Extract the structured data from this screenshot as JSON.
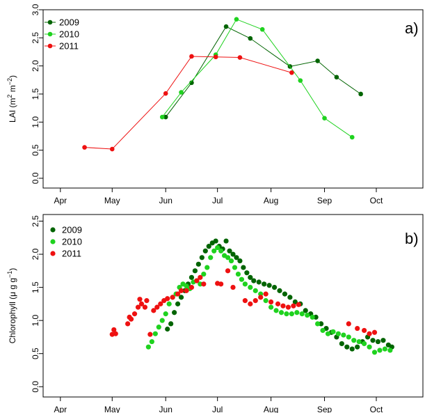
{
  "chart_data": [
    {
      "type": "line",
      "panel_label": "a)",
      "ylabel_main": "LAI (m",
      "ylabel_sup1": "2",
      "ylabel_mid": " m",
      "ylabel_sup2": "−2",
      "ylabel_end": ")",
      "xlim": [
        "2009-03-22",
        "2009-10-28"
      ],
      "ylim": [
        -0.05,
        3.0
      ],
      "yticks": [
        "0.0",
        "0.5",
        "1.0",
        "1.5",
        "2.0",
        "2.5",
        "3.0"
      ],
      "xticks": [
        {
          "date": "2009-04-01",
          "label": "Apr"
        },
        {
          "date": "2009-05-01",
          "label": "May"
        },
        {
          "date": "2009-06-01",
          "label": "Jun"
        },
        {
          "date": "2009-07-01",
          "label": "Jul"
        },
        {
          "date": "2009-08-01",
          "label": "Aug"
        },
        {
          "date": "2009-09-01",
          "label": "Sep"
        },
        {
          "date": "2009-10-01",
          "label": "Oct"
        }
      ],
      "legend_position": "top-left",
      "series": [
        {
          "name": "2009",
          "color": "#006400",
          "points": [
            {
              "x": "2009-06-01",
              "y": 1.09
            },
            {
              "x": "2009-06-16",
              "y": 1.7
            },
            {
              "x": "2009-07-06",
              "y": 2.7
            },
            {
              "x": "2009-07-20",
              "y": 2.49
            },
            {
              "x": "2009-08-12",
              "y": 1.99
            },
            {
              "x": "2009-08-28",
              "y": 2.09
            },
            {
              "x": "2009-09-08",
              "y": 1.8
            },
            {
              "x": "2009-09-22",
              "y": 1.5
            }
          ]
        },
        {
          "name": "2010",
          "color": "#1FD21F",
          "points": [
            {
              "x": "2009-05-30",
              "y": 1.09
            },
            {
              "x": "2009-06-10",
              "y": 1.53
            },
            {
              "x": "2009-06-30",
              "y": 2.2
            },
            {
              "x": "2009-07-12",
              "y": 2.83
            },
            {
              "x": "2009-07-27",
              "y": 2.65
            },
            {
              "x": "2009-08-18",
              "y": 1.74
            },
            {
              "x": "2009-09-01",
              "y": 1.07
            },
            {
              "x": "2009-09-17",
              "y": 0.73
            }
          ]
        },
        {
          "name": "2011",
          "color": "#EE1111",
          "points": [
            {
              "x": "2009-04-15",
              "y": 0.55
            },
            {
              "x": "2009-05-01",
              "y": 0.52
            },
            {
              "x": "2009-06-01",
              "y": 1.51
            },
            {
              "x": "2009-06-16",
              "y": 2.17
            },
            {
              "x": "2009-06-30",
              "y": 2.16
            },
            {
              "x": "2009-07-14",
              "y": 2.15
            },
            {
              "x": "2009-08-13",
              "y": 1.88
            }
          ]
        }
      ]
    },
    {
      "type": "scatter",
      "panel_label": "b)",
      "ylabel_main": "Chlorophyll (μ g g",
      "ylabel_sup1": "−1",
      "ylabel_end": ")",
      "xlim": [
        "2009-03-22",
        "2009-10-28"
      ],
      "ylim": [
        -0.05,
        2.6
      ],
      "yticks": [
        "0.0",
        "0.5",
        "1.0",
        "1.5",
        "2.0",
        "2.5"
      ],
      "xticks": [
        {
          "date": "2009-04-01",
          "label": "Apr"
        },
        {
          "date": "2009-05-01",
          "label": "May"
        },
        {
          "date": "2009-06-01",
          "label": "Jun"
        },
        {
          "date": "2009-07-01",
          "label": "Jul"
        },
        {
          "date": "2009-08-01",
          "label": "Aug"
        },
        {
          "date": "2009-09-01",
          "label": "Sep"
        },
        {
          "date": "2009-10-01",
          "label": "Oct"
        }
      ],
      "legend_position": "top-left",
      "series": [
        {
          "name": "2009",
          "color": "#006400",
          "points": [
            {
              "x": "2009-06-02",
              "y": 0.87
            },
            {
              "x": "2009-06-04",
              "y": 0.95
            },
            {
              "x": "2009-06-06",
              "y": 1.12
            },
            {
              "x": "2009-06-08",
              "y": 1.25
            },
            {
              "x": "2009-06-10",
              "y": 1.35
            },
            {
              "x": "2009-06-12",
              "y": 1.45
            },
            {
              "x": "2009-06-14",
              "y": 1.55
            },
            {
              "x": "2009-06-16",
              "y": 1.65
            },
            {
              "x": "2009-06-18",
              "y": 1.75
            },
            {
              "x": "2009-06-20",
              "y": 1.85
            },
            {
              "x": "2009-06-22",
              "y": 1.95
            },
            {
              "x": "2009-06-24",
              "y": 2.05
            },
            {
              "x": "2009-06-26",
              "y": 2.12
            },
            {
              "x": "2009-06-28",
              "y": 2.17
            },
            {
              "x": "2009-06-30",
              "y": 2.2
            },
            {
              "x": "2009-07-02",
              "y": 2.12
            },
            {
              "x": "2009-07-04",
              "y": 2.08
            },
            {
              "x": "2009-07-06",
              "y": 2.2
            },
            {
              "x": "2009-07-08",
              "y": 2.05
            },
            {
              "x": "2009-07-10",
              "y": 2.0
            },
            {
              "x": "2009-07-12",
              "y": 1.95
            },
            {
              "x": "2009-07-14",
              "y": 1.9
            },
            {
              "x": "2009-07-16",
              "y": 1.8
            },
            {
              "x": "2009-07-18",
              "y": 1.72
            },
            {
              "x": "2009-07-20",
              "y": 1.65
            },
            {
              "x": "2009-07-22",
              "y": 1.6
            },
            {
              "x": "2009-07-25",
              "y": 1.58
            },
            {
              "x": "2009-07-28",
              "y": 1.55
            },
            {
              "x": "2009-07-31",
              "y": 1.53
            },
            {
              "x": "2009-08-03",
              "y": 1.5
            },
            {
              "x": "2009-08-06",
              "y": 1.45
            },
            {
              "x": "2009-08-09",
              "y": 1.4
            },
            {
              "x": "2009-08-12",
              "y": 1.35
            },
            {
              "x": "2009-08-15",
              "y": 1.28
            },
            {
              "x": "2009-08-18",
              "y": 1.25
            },
            {
              "x": "2009-08-21",
              "y": 1.15
            },
            {
              "x": "2009-08-24",
              "y": 1.1
            },
            {
              "x": "2009-08-27",
              "y": 1.05
            },
            {
              "x": "2009-08-30",
              "y": 0.95
            },
            {
              "x": "2009-09-02",
              "y": 0.88
            },
            {
              "x": "2009-09-05",
              "y": 0.82
            },
            {
              "x": "2009-09-08",
              "y": 0.75
            },
            {
              "x": "2009-09-11",
              "y": 0.65
            },
            {
              "x": "2009-09-14",
              "y": 0.6
            },
            {
              "x": "2009-09-17",
              "y": 0.57
            },
            {
              "x": "2009-09-20",
              "y": 0.6
            },
            {
              "x": "2009-09-23",
              "y": 0.68
            },
            {
              "x": "2009-09-26",
              "y": 0.75
            },
            {
              "x": "2009-09-29",
              "y": 0.7
            },
            {
              "x": "2009-10-02",
              "y": 0.68
            },
            {
              "x": "2009-10-05",
              "y": 0.7
            },
            {
              "x": "2009-10-08",
              "y": 0.63
            },
            {
              "x": "2009-10-10",
              "y": 0.6
            }
          ]
        },
        {
          "name": "2010",
          "color": "#1FD21F",
          "points": [
            {
              "x": "2009-05-22",
              "y": 0.6
            },
            {
              "x": "2009-05-24",
              "y": 0.68
            },
            {
              "x": "2009-05-26",
              "y": 0.8
            },
            {
              "x": "2009-05-28",
              "y": 0.9
            },
            {
              "x": "2009-05-30",
              "y": 1.0
            },
            {
              "x": "2009-06-01",
              "y": 1.1
            },
            {
              "x": "2009-06-03",
              "y": 1.25
            },
            {
              "x": "2009-06-05",
              "y": 1.35
            },
            {
              "x": "2009-06-07",
              "y": 1.4
            },
            {
              "x": "2009-06-09",
              "y": 1.5
            },
            {
              "x": "2009-06-11",
              "y": 1.55
            },
            {
              "x": "2009-06-13",
              "y": 1.52
            },
            {
              "x": "2009-06-15",
              "y": 1.48
            },
            {
              "x": "2009-06-17",
              "y": 1.58
            },
            {
              "x": "2009-06-19",
              "y": 1.6
            },
            {
              "x": "2009-06-21",
              "y": 1.55
            },
            {
              "x": "2009-06-23",
              "y": 1.7
            },
            {
              "x": "2009-06-25",
              "y": 1.8
            },
            {
              "x": "2009-06-27",
              "y": 1.95
            },
            {
              "x": "2009-06-29",
              "y": 2.05
            },
            {
              "x": "2009-07-01",
              "y": 2.1
            },
            {
              "x": "2009-07-03",
              "y": 2.05
            },
            {
              "x": "2009-07-05",
              "y": 1.98
            },
            {
              "x": "2009-07-07",
              "y": 1.95
            },
            {
              "x": "2009-07-09",
              "y": 1.9
            },
            {
              "x": "2009-07-11",
              "y": 1.8
            },
            {
              "x": "2009-07-13",
              "y": 1.7
            },
            {
              "x": "2009-07-15",
              "y": 1.62
            },
            {
              "x": "2009-07-17",
              "y": 1.55
            },
            {
              "x": "2009-07-20",
              "y": 1.5
            },
            {
              "x": "2009-07-23",
              "y": 1.45
            },
            {
              "x": "2009-07-26",
              "y": 1.4
            },
            {
              "x": "2009-07-29",
              "y": 1.3
            },
            {
              "x": "2009-08-01",
              "y": 1.2
            },
            {
              "x": "2009-08-04",
              "y": 1.15
            },
            {
              "x": "2009-08-07",
              "y": 1.12
            },
            {
              "x": "2009-08-10",
              "y": 1.1
            },
            {
              "x": "2009-08-13",
              "y": 1.1
            },
            {
              "x": "2009-08-16",
              "y": 1.12
            },
            {
              "x": "2009-08-19",
              "y": 1.1
            },
            {
              "x": "2009-08-22",
              "y": 1.08
            },
            {
              "x": "2009-08-25",
              "y": 1.05
            },
            {
              "x": "2009-08-28",
              "y": 0.95
            },
            {
              "x": "2009-08-31",
              "y": 0.85
            },
            {
              "x": "2009-09-03",
              "y": 0.8
            },
            {
              "x": "2009-09-06",
              "y": 0.83
            },
            {
              "x": "2009-09-09",
              "y": 0.8
            },
            {
              "x": "2009-09-12",
              "y": 0.78
            },
            {
              "x": "2009-09-15",
              "y": 0.75
            },
            {
              "x": "2009-09-18",
              "y": 0.7
            },
            {
              "x": "2009-09-21",
              "y": 0.68
            },
            {
              "x": "2009-09-24",
              "y": 0.65
            },
            {
              "x": "2009-09-27",
              "y": 0.6
            },
            {
              "x": "2009-09-30",
              "y": 0.52
            },
            {
              "x": "2009-10-03",
              "y": 0.55
            },
            {
              "x": "2009-10-06",
              "y": 0.57
            },
            {
              "x": "2009-10-09",
              "y": 0.55
            }
          ]
        },
        {
          "name": "2011",
          "color": "#EE1111",
          "points": [
            {
              "x": "2009-05-01",
              "y": 0.79
            },
            {
              "x": "2009-05-02",
              "y": 0.86
            },
            {
              "x": "2009-05-03",
              "y": 0.8
            },
            {
              "x": "2009-05-10",
              "y": 0.95
            },
            {
              "x": "2009-05-11",
              "y": 1.05
            },
            {
              "x": "2009-05-12",
              "y": 1.02
            },
            {
              "x": "2009-05-14",
              "y": 1.1
            },
            {
              "x": "2009-05-16",
              "y": 1.2
            },
            {
              "x": "2009-05-17",
              "y": 1.32
            },
            {
              "x": "2009-05-18",
              "y": 1.25
            },
            {
              "x": "2009-05-20",
              "y": 1.2
            },
            {
              "x": "2009-05-21",
              "y": 1.3
            },
            {
              "x": "2009-05-23",
              "y": 0.79
            },
            {
              "x": "2009-05-25",
              "y": 1.15
            },
            {
              "x": "2009-05-27",
              "y": 1.2
            },
            {
              "x": "2009-05-29",
              "y": 1.25
            },
            {
              "x": "2009-05-31",
              "y": 1.3
            },
            {
              "x": "2009-06-02",
              "y": 1.33
            },
            {
              "x": "2009-06-05",
              "y": 1.35
            },
            {
              "x": "2009-06-08",
              "y": 1.4
            },
            {
              "x": "2009-06-10",
              "y": 1.45
            },
            {
              "x": "2009-06-13",
              "y": 1.45
            },
            {
              "x": "2009-06-16",
              "y": 1.5
            },
            {
              "x": "2009-06-19",
              "y": 1.6
            },
            {
              "x": "2009-06-21",
              "y": 1.65
            },
            {
              "x": "2009-06-23",
              "y": 1.55
            },
            {
              "x": "2009-07-01",
              "y": 1.56
            },
            {
              "x": "2009-07-03",
              "y": 1.55
            },
            {
              "x": "2009-07-07",
              "y": 1.75
            },
            {
              "x": "2009-07-10",
              "y": 1.5
            },
            {
              "x": "2009-07-17",
              "y": 1.3
            },
            {
              "x": "2009-07-20",
              "y": 1.25
            },
            {
              "x": "2009-07-23",
              "y": 1.3
            },
            {
              "x": "2009-07-26",
              "y": 1.35
            },
            {
              "x": "2009-07-29",
              "y": 1.4
            },
            {
              "x": "2009-08-01",
              "y": 1.28
            },
            {
              "x": "2009-08-05",
              "y": 1.25
            },
            {
              "x": "2009-08-08",
              "y": 1.22
            },
            {
              "x": "2009-08-11",
              "y": 1.2
            },
            {
              "x": "2009-08-14",
              "y": 1.22
            },
            {
              "x": "2009-08-17",
              "y": 1.24
            },
            {
              "x": "2009-09-15",
              "y": 0.95
            },
            {
              "x": "2009-09-20",
              "y": 0.88
            },
            {
              "x": "2009-09-24",
              "y": 0.85
            },
            {
              "x": "2009-09-27",
              "y": 0.8
            },
            {
              "x": "2009-09-30",
              "y": 0.82
            }
          ]
        }
      ]
    }
  ]
}
